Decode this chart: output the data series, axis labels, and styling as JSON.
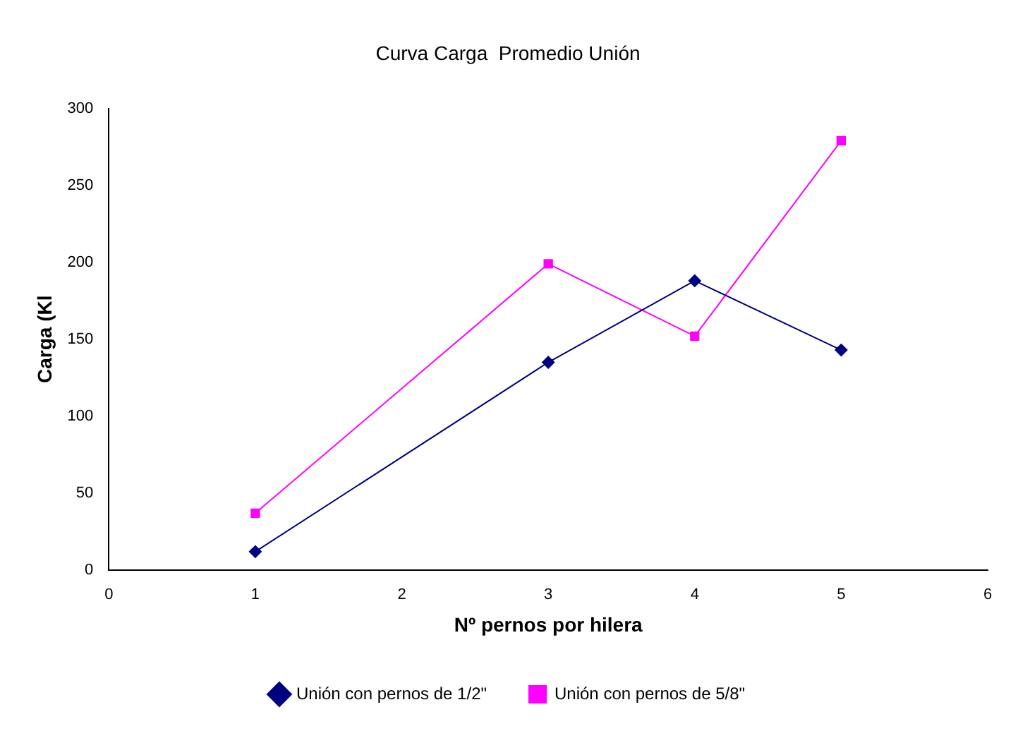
{
  "chart_data": {
    "type": "line",
    "title": "Curva Carga  Promedio Unión",
    "xlabel": "Nº pernos por hilera",
    "ylabel": "Carga (Kl",
    "xlim": [
      0,
      6
    ],
    "xticks": [
      0,
      1,
      2,
      3,
      4,
      5,
      6
    ],
    "ylim": [
      0,
      300
    ],
    "yticks": [
      0,
      50,
      100,
      150,
      200,
      250,
      300
    ],
    "grid": false,
    "legend": "bottom",
    "series": [
      {
        "name": "Unión con pernos de 1/2\"",
        "color": "#000080",
        "marker": "diamond",
        "x": [
          1,
          3,
          4,
          5
        ],
        "values": [
          12,
          135,
          188,
          143
        ]
      },
      {
        "name": "Unión con pernos de 5/8\"",
        "color": "#ff00ff",
        "marker": "square",
        "x": [
          1,
          3,
          4,
          5
        ],
        "values": [
          37,
          199,
          152,
          279
        ]
      }
    ]
  }
}
